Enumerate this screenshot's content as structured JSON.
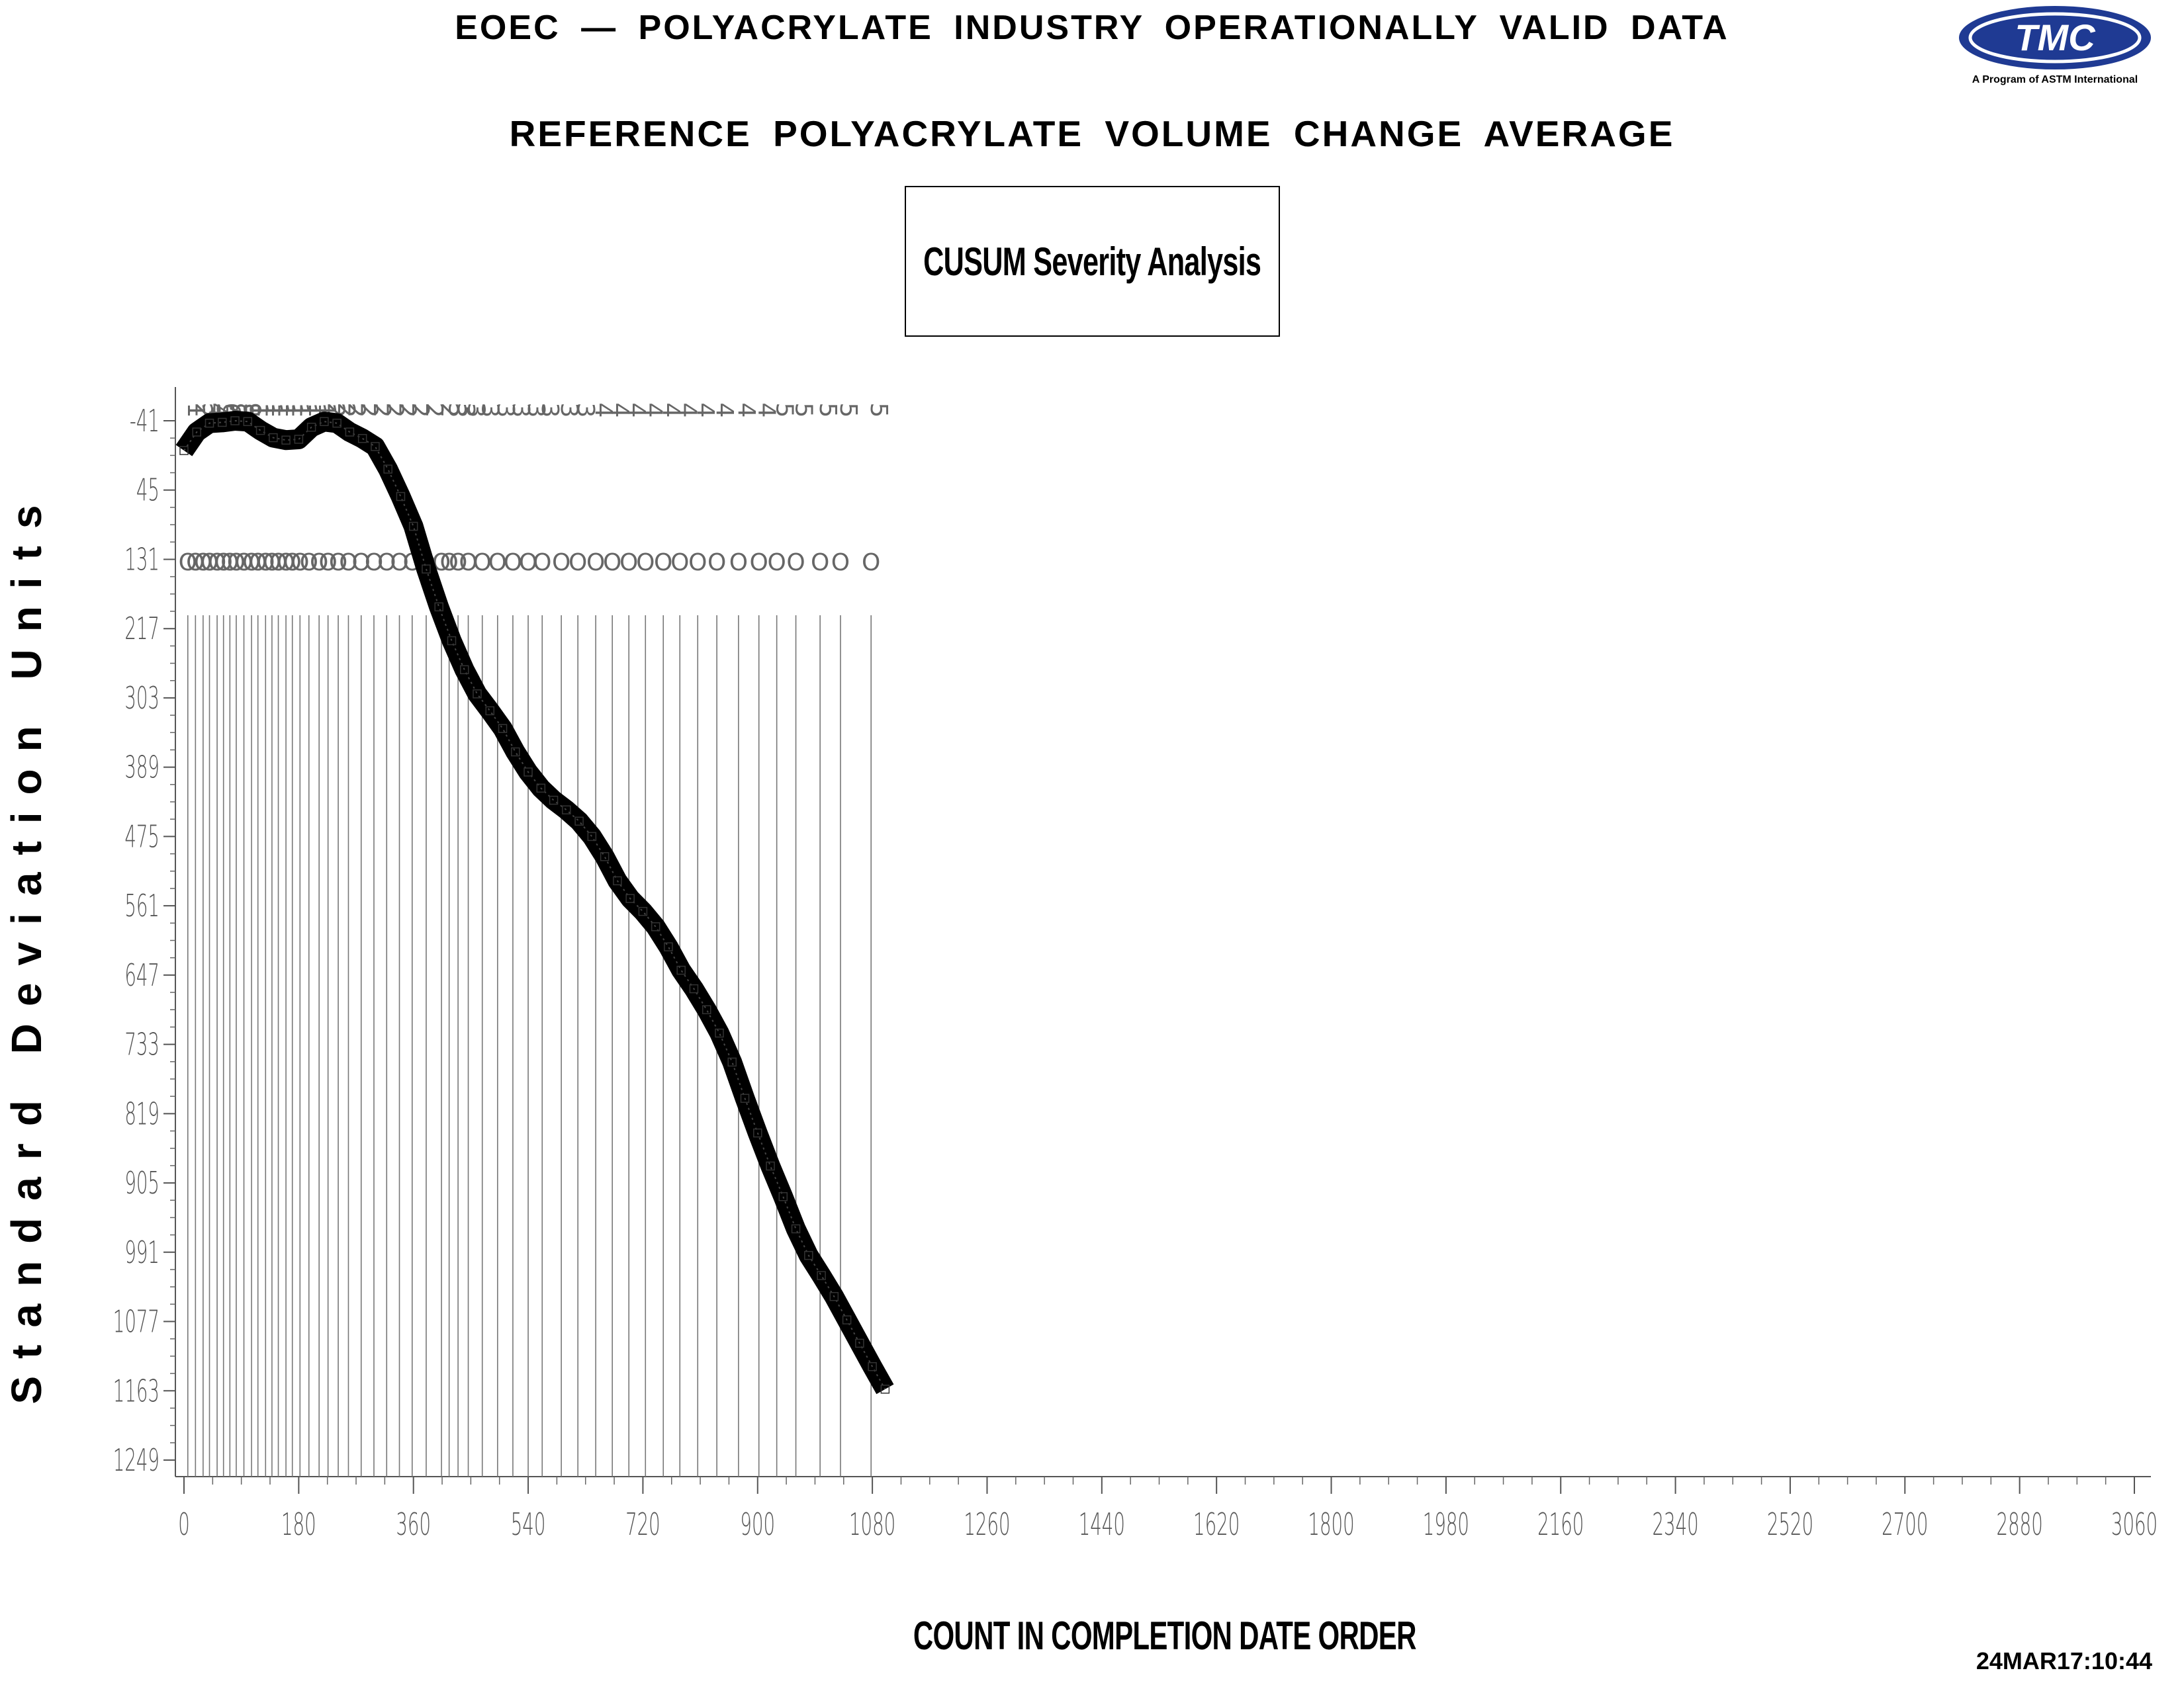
{
  "header": {
    "title": "EOEC — POLYACRYLATE INDUSTRY OPERATIONALLY VALID DATA",
    "subtitle": "REFERENCE POLYACRYLATE VOLUME CHANGE AVERAGE",
    "boxed_label": "CUSUM Severity Analysis",
    "timestamp": "24MAR17:10:44"
  },
  "logo": {
    "text": "TMC",
    "caption": "A Program of ASTM International",
    "color": "#1f3a93"
  },
  "chart_data": {
    "type": "line",
    "title": "CUSUM Severity Analysis",
    "xlabel": "COUNT IN COMPLETION DATE ORDER",
    "ylabel": "Standard Deviation Units",
    "xlim": [
      0,
      3060
    ],
    "ylim": [
      -41,
      1249
    ],
    "y_inverted": true,
    "x_ticks": [
      0,
      180,
      360,
      540,
      720,
      900,
      1080,
      1260,
      1440,
      1620,
      1800,
      1980,
      2160,
      2340,
      2520,
      2700,
      2880,
      3060
    ],
    "y_ticks": [
      -41,
      45,
      131,
      217,
      303,
      389,
      475,
      561,
      647,
      733,
      819,
      905,
      991,
      1077,
      1163,
      1249
    ],
    "grid": false,
    "line_color": "#000000",
    "series": [
      {
        "x": [
          0,
          20,
          40,
          60,
          80,
          100,
          120,
          140,
          160,
          180,
          200,
          220,
          240,
          260,
          280,
          300,
          320,
          340,
          360,
          380,
          400,
          420,
          440,
          460,
          480,
          500,
          520,
          540,
          560,
          580,
          600,
          620,
          640,
          660,
          680,
          700,
          720,
          740,
          760,
          780,
          800,
          820,
          840,
          860,
          880,
          900,
          920,
          940,
          960,
          980,
          1000,
          1020,
          1040,
          1060,
          1080,
          1100
        ],
        "values": [
          -4,
          -27,
          -38,
          -39,
          -41,
          -40,
          -29,
          -20,
          -17,
          -18,
          -33,
          -40,
          -38,
          -27,
          -19,
          -9,
          19,
          53,
          90,
          143,
          190,
          232,
          268,
          298,
          319,
          341,
          370,
          395,
          415,
          430,
          442,
          456,
          475,
          500,
          530,
          552,
          568,
          587,
          612,
          641,
          664,
          690,
          719,
          755,
          800,
          843,
          884,
          922,
          962,
          995,
          1020,
          1046,
          1075,
          1104,
          1133,
          1161
        ]
      }
    ],
    "lot_markers": [
      6,
      18,
      30,
      40,
      52,
      62,
      72,
      82,
      94,
      106,
      116,
      128,
      138,
      148,
      160,
      170,
      182,
      196,
      212,
      226,
      242,
      258,
      278,
      298,
      318,
      338,
      358,
      380,
      404,
      416,
      430,
      446,
      468,
      492,
      516,
      540,
      562,
      592,
      618,
      646,
      672,
      698,
      724,
      752,
      778,
      806,
      836,
      870,
      902,
      930,
      960,
      998,
      1030,
      1078
    ],
    "lot_labels": {
      "row1": [
        "1",
        "2",
        "3",
        "4",
        "5",
        "6",
        "7",
        "8",
        "9",
        "1",
        "1",
        "1",
        "1",
        "1",
        "1",
        "1",
        "1",
        "1",
        "1",
        "2",
        "2",
        "2",
        "2",
        "2",
        "2",
        "2",
        "2",
        "2",
        "2",
        "3",
        "3",
        "3",
        "3",
        "3",
        "3",
        "3",
        "3",
        "3",
        "3",
        "4",
        "4",
        "4",
        "4",
        "4",
        "4",
        "4",
        "4",
        "4",
        "4",
        "5",
        "5",
        "5",
        "5",
        "5"
      ],
      "row2": [
        "O",
        "O",
        "O",
        "O",
        "O",
        "O",
        "O",
        "O",
        "O",
        "O",
        "O",
        "O",
        "O",
        "O",
        "O",
        "O",
        "O",
        "O",
        "O",
        "O",
        "O",
        "O",
        "O",
        "O",
        "O",
        "O",
        "O",
        "O",
        "O",
        "O",
        "O",
        "O",
        "O",
        "O",
        "O",
        "O",
        "O",
        "O",
        "O",
        "O",
        "O",
        "O",
        "O",
        "O",
        "O",
        "O",
        "O",
        "O",
        "O",
        "O",
        "O",
        "O",
        "O",
        "O"
      ]
    }
  }
}
